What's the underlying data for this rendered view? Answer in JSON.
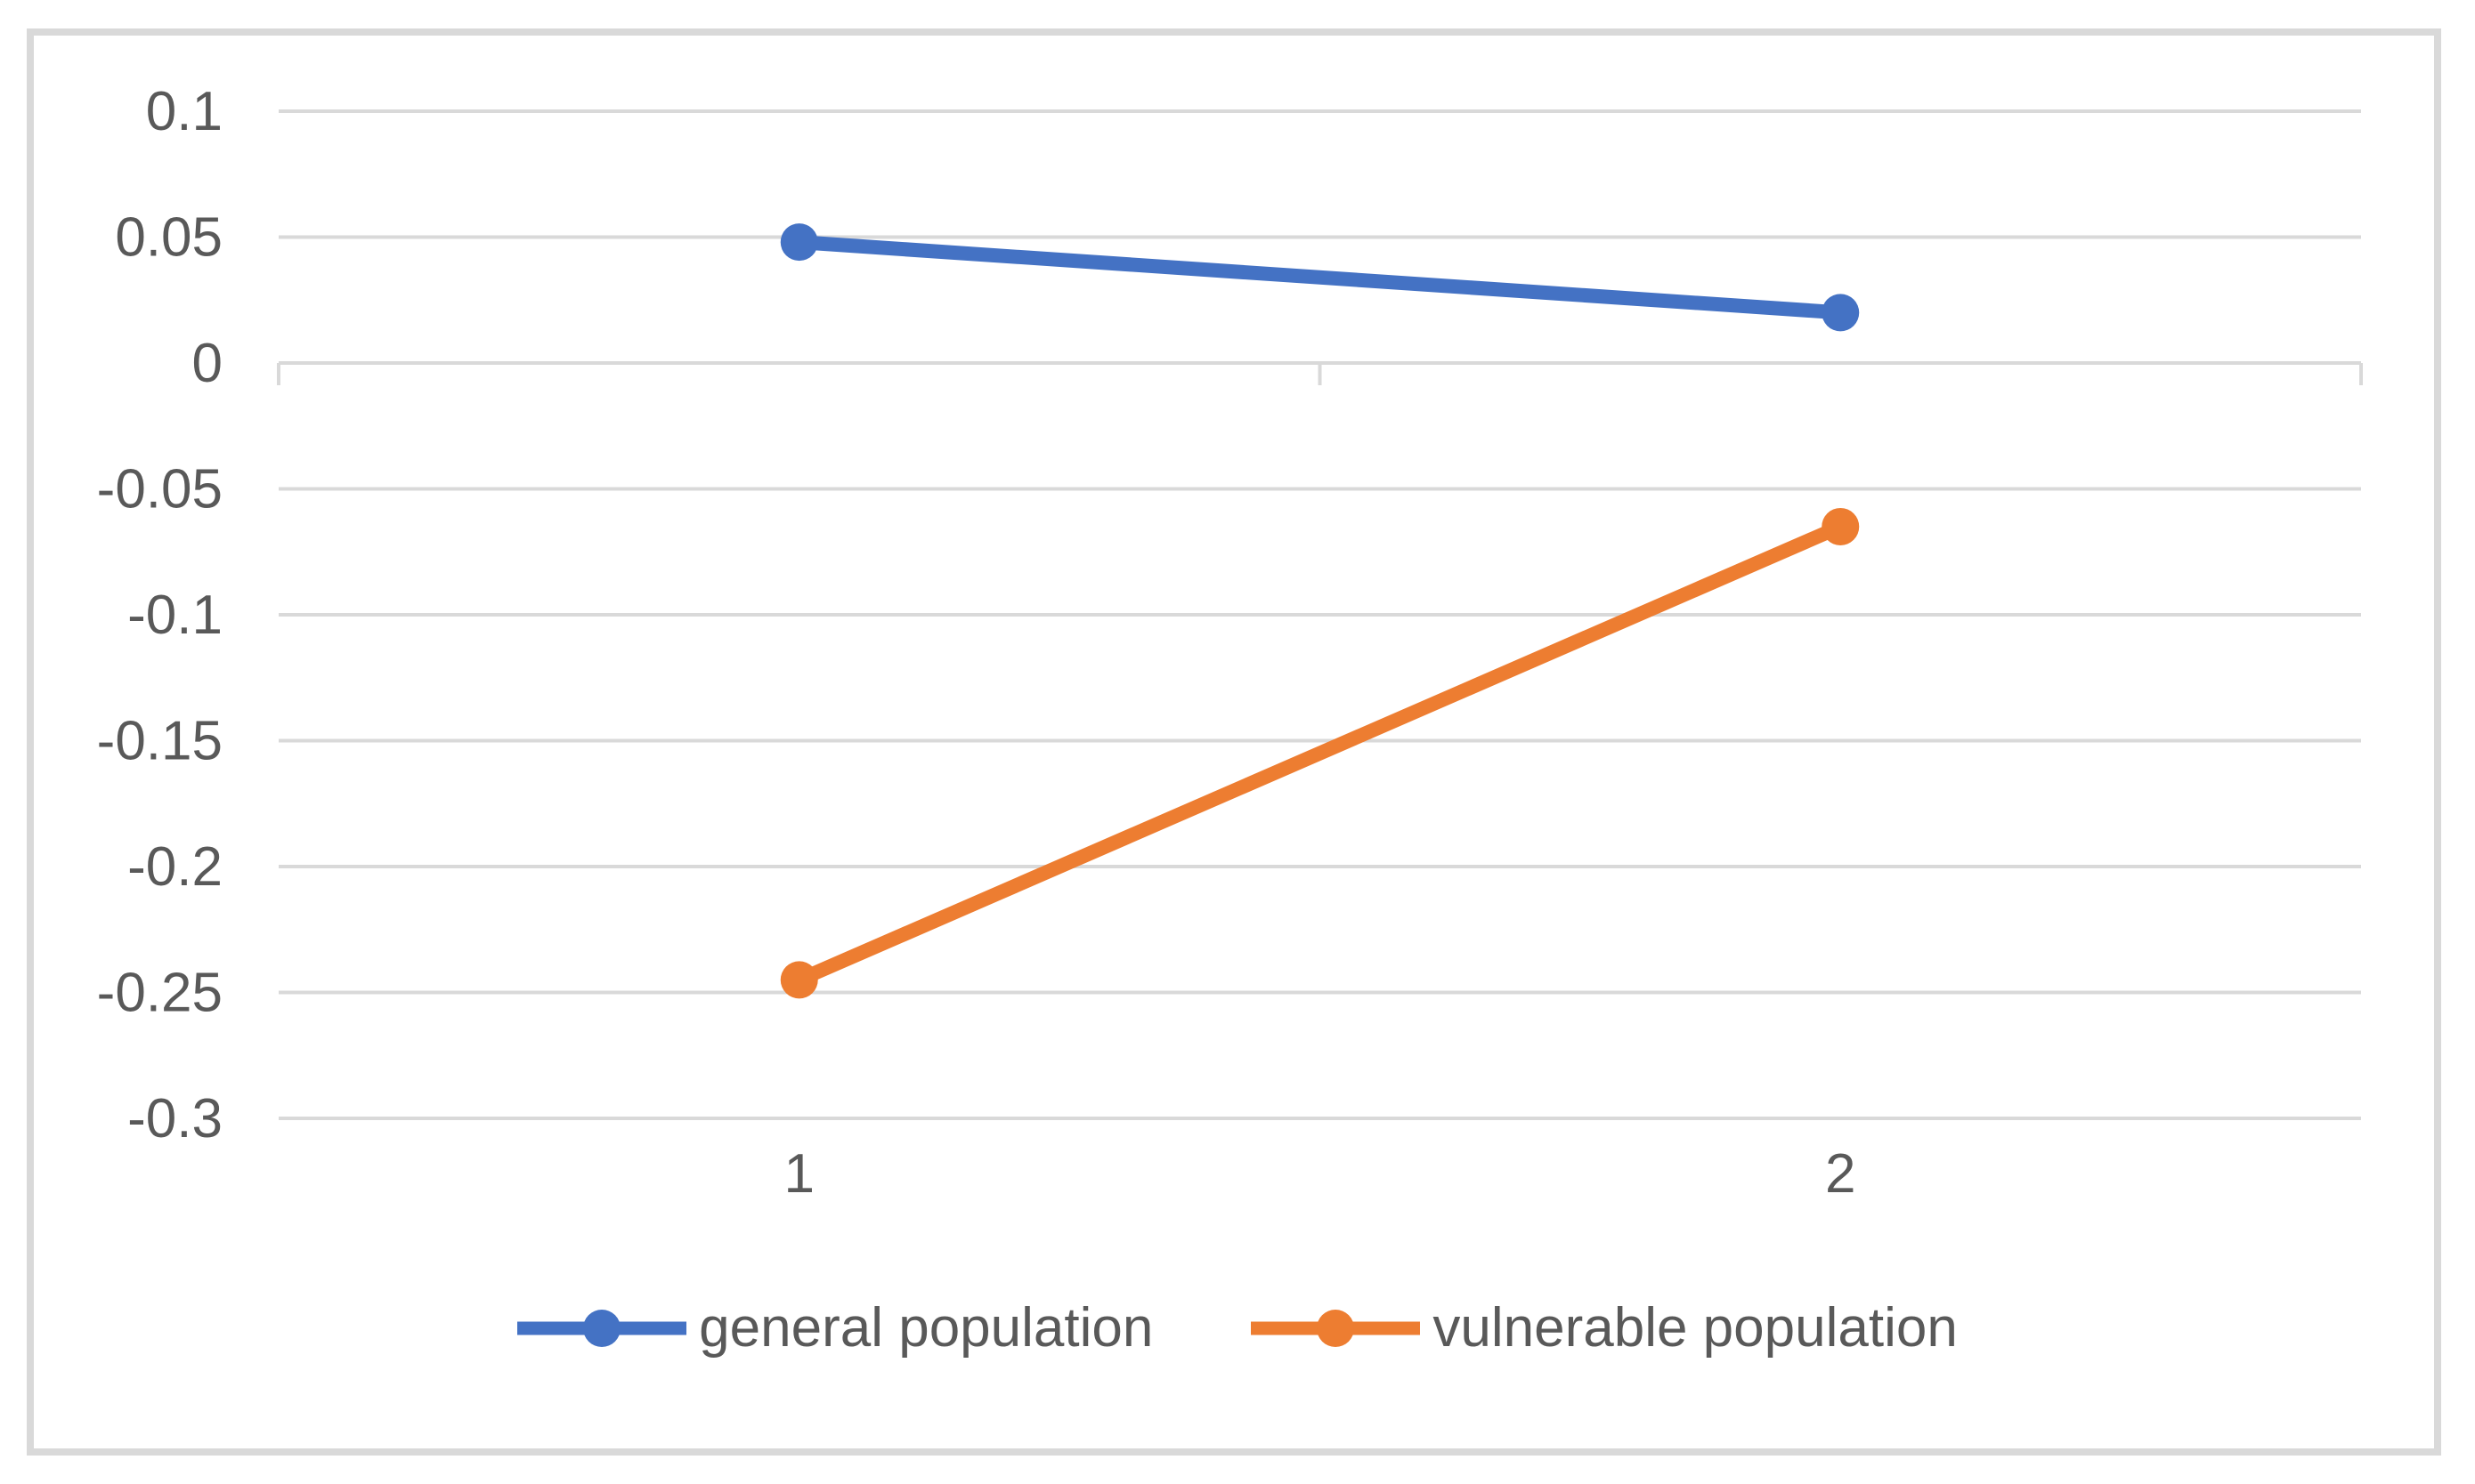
{
  "chart_data": {
    "type": "line",
    "categories": [
      "1",
      "2"
    ],
    "series": [
      {
        "name": "general population",
        "color": "#4472C4",
        "values": [
          0.048,
          0.02
        ]
      },
      {
        "name": "vulnerable population",
        "color": "#ED7D31",
        "values": [
          -0.245,
          -0.065
        ]
      }
    ],
    "xlabel": "",
    "ylabel": "",
    "ylim": [
      -0.3,
      0.1
    ],
    "yticks": [
      0.1,
      0.05,
      0,
      -0.05,
      -0.1,
      -0.15,
      -0.2,
      -0.25,
      -0.3
    ],
    "ytick_labels": [
      "0.1",
      "0.05",
      "0",
      "-0.05",
      "-0.1",
      "-0.15",
      "-0.2",
      "-0.25",
      "-0.3"
    ],
    "grid": true,
    "legend_position": "bottom",
    "marker": "circle"
  },
  "colors": {
    "grid": "#D9D9D9",
    "frame_border": "#D9D9D9",
    "axis_text": "#595959",
    "background": "#FFFFFF"
  }
}
